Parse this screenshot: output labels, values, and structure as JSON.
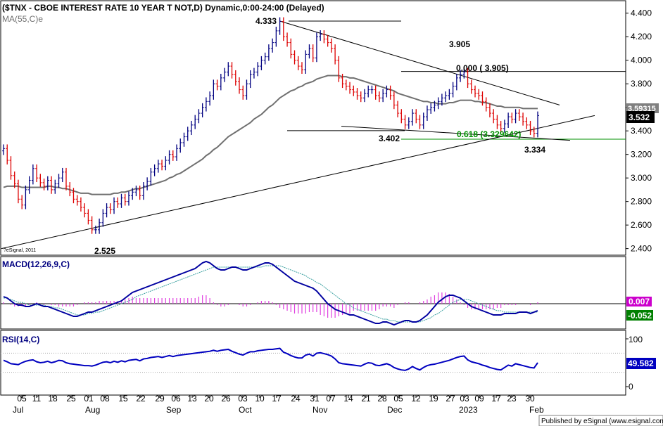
{
  "chart_data": [
    {
      "type": "candlestick",
      "title": "($TNX - CBOE INTEREST RATE 10 YEAR T NOT,D) Dynamic,0:00-24:00 (Delayed)",
      "indicator_label": "MA(55,C)e",
      "ylim": [
        2.35,
        4.5
      ],
      "y_ticks": [
        "4.400",
        "4.200",
        "4.000",
        "3.800",
        "3.600",
        "3.400",
        "3.200",
        "3.000",
        "2.800",
        "2.600",
        "2.400"
      ],
      "last_price": "3.532",
      "ma_value": "3.59315",
      "copyright": "?eSignal, 2011",
      "annotations": [
        "4.333",
        "3.905",
        "0.000 ( 3.905)",
        "3.402",
        "0.618 (3.329642)",
        "3.334",
        "2.525"
      ],
      "series": [
        {
          "name": "close",
          "values": [
            3.25,
            3.15,
            3.02,
            2.95,
            2.82,
            2.77,
            2.9,
            2.98,
            3.08,
            3.0,
            2.96,
            2.93,
            2.98,
            2.9,
            2.95,
            3.0,
            3.05,
            2.93,
            2.88,
            2.82,
            2.8,
            2.75,
            2.7,
            2.64,
            2.56,
            2.56,
            2.62,
            2.7,
            2.75,
            2.73,
            2.8,
            2.78,
            2.83,
            2.8,
            2.85,
            2.88,
            2.9,
            2.85,
            2.93,
            2.97,
            3.05,
            3.08,
            3.12,
            3.1,
            3.15,
            3.2,
            3.18,
            3.25,
            3.3,
            3.35,
            3.4,
            3.45,
            3.5,
            3.55,
            3.6,
            3.65,
            3.7,
            3.8,
            3.78,
            3.85,
            3.9,
            3.95,
            3.88,
            3.82,
            3.75,
            3.7,
            3.8,
            3.88,
            3.9,
            3.95,
            4.0,
            4.03,
            4.1,
            4.15,
            4.25,
            4.33,
            4.2,
            4.15,
            4.05,
            4.0,
            3.95,
            3.92,
            4.05,
            4.1,
            4.02,
            4.2,
            4.22,
            4.18,
            4.15,
            4.1,
            4.0,
            3.85,
            3.8,
            3.78,
            3.75,
            3.73,
            3.7,
            3.68,
            3.72,
            3.75,
            3.75,
            3.7,
            3.68,
            3.72,
            3.75,
            3.7,
            3.62,
            3.55,
            3.5,
            3.45,
            3.48,
            3.55,
            3.5,
            3.45,
            3.52,
            3.58,
            3.6,
            3.62,
            3.65,
            3.68,
            3.7,
            3.72,
            3.78,
            3.85,
            3.88,
            3.9,
            3.8,
            3.75,
            3.72,
            3.7,
            3.65,
            3.6,
            3.55,
            3.5,
            3.45,
            3.42,
            3.46,
            3.52,
            3.5,
            3.55,
            3.52,
            3.48,
            3.45,
            3.4,
            3.38,
            3.53
          ]
        },
        {
          "name": "MA(55,C)e",
          "values": [
            2.92,
            2.93,
            2.93,
            2.93,
            2.93,
            2.92,
            2.92,
            2.92,
            2.92,
            2.92,
            2.92,
            2.92,
            2.93,
            2.93,
            2.92,
            2.92,
            2.91,
            2.91,
            2.9,
            2.89,
            2.88,
            2.87,
            2.87,
            2.87,
            2.86,
            2.86,
            2.86,
            2.86,
            2.86,
            2.86,
            2.87,
            2.87,
            2.88,
            2.88,
            2.89,
            2.9,
            2.91,
            2.91,
            2.92,
            2.93,
            2.94,
            2.95,
            2.96,
            2.97,
            2.98,
            3.0,
            3.01,
            3.03,
            3.04,
            3.06,
            3.08,
            3.1,
            3.12,
            3.14,
            3.16,
            3.19,
            3.21,
            3.24,
            3.26,
            3.29,
            3.32,
            3.35,
            3.37,
            3.39,
            3.41,
            3.43,
            3.45,
            3.47,
            3.5,
            3.52,
            3.54,
            3.57,
            3.6,
            3.62,
            3.65,
            3.68,
            3.7,
            3.72,
            3.74,
            3.75,
            3.77,
            3.78,
            3.8,
            3.81,
            3.82,
            3.84,
            3.85,
            3.86,
            3.87,
            3.87,
            3.87,
            3.87,
            3.86,
            3.86,
            3.85,
            3.85,
            3.84,
            3.83,
            3.82,
            3.81,
            3.8,
            3.79,
            3.78,
            3.77,
            3.76,
            3.75,
            3.74,
            3.72,
            3.71,
            3.7,
            3.69,
            3.68,
            3.67,
            3.66,
            3.65,
            3.65,
            3.64,
            3.64,
            3.63,
            3.63,
            3.63,
            3.64,
            3.64,
            3.65,
            3.66,
            3.66,
            3.66,
            3.66,
            3.65,
            3.65,
            3.64,
            3.64,
            3.63,
            3.62,
            3.61,
            3.61,
            3.6,
            3.6,
            3.6,
            3.6,
            3.6,
            3.59,
            3.59,
            3.59,
            3.59,
            3.59
          ]
        }
      ]
    },
    {
      "type": "line",
      "title": "MACD(12,26,9,C)",
      "y_value_labels": [
        "0.007",
        "-0.052"
      ],
      "series": [
        {
          "name": "MACD",
          "values": [
            0.05,
            0.04,
            0.02,
            0.0,
            -0.01,
            -0.01,
            -0.02,
            -0.02,
            -0.01,
            0.0,
            -0.01,
            -0.02,
            -0.02,
            -0.03,
            -0.04,
            -0.05,
            -0.06,
            -0.07,
            -0.08,
            -0.09,
            -0.09,
            -0.08,
            -0.07,
            -0.06,
            -0.06,
            -0.05,
            -0.04,
            -0.03,
            -0.02,
            -0.01,
            0.0,
            0.01,
            0.02,
            0.04,
            0.06,
            0.08,
            0.09,
            0.1,
            0.11,
            0.12,
            0.13,
            0.14,
            0.15,
            0.16,
            0.17,
            0.18,
            0.19,
            0.2,
            0.21,
            0.22,
            0.23,
            0.24,
            0.25,
            0.27,
            0.29,
            0.3,
            0.29,
            0.27,
            0.25,
            0.24,
            0.24,
            0.25,
            0.26,
            0.26,
            0.25,
            0.24,
            0.24,
            0.25,
            0.26,
            0.27,
            0.28,
            0.29,
            0.29,
            0.28,
            0.26,
            0.24,
            0.22,
            0.2,
            0.18,
            0.16,
            0.15,
            0.14,
            0.13,
            0.12,
            0.11,
            0.09,
            0.06,
            0.03,
            0.0,
            -0.02,
            -0.04,
            -0.05,
            -0.06,
            -0.07,
            -0.08,
            -0.08,
            -0.09,
            -0.1,
            -0.11,
            -0.12,
            -0.13,
            -0.14,
            -0.14,
            -0.13,
            -0.13,
            -0.14,
            -0.15,
            -0.14,
            -0.13,
            -0.12,
            -0.12,
            -0.13,
            -0.13,
            -0.12,
            -0.1,
            -0.08,
            -0.05,
            -0.02,
            0.01,
            0.03,
            0.05,
            0.06,
            0.06,
            0.05,
            0.04,
            0.02,
            0.0,
            -0.02,
            -0.03,
            -0.04,
            -0.05,
            -0.06,
            -0.07,
            -0.08,
            -0.08,
            -0.08,
            -0.07,
            -0.07,
            -0.07,
            -0.07,
            -0.06,
            -0.06,
            -0.06,
            -0.07,
            -0.06,
            -0.05
          ]
        },
        {
          "name": "Signal",
          "values": [
            0.04,
            0.04,
            0.03,
            0.02,
            0.01,
            0.01,
            0.0,
            -0.01,
            -0.01,
            -0.01,
            -0.01,
            -0.01,
            -0.02,
            -0.02,
            -0.03,
            -0.03,
            -0.04,
            -0.05,
            -0.06,
            -0.07,
            -0.08,
            -0.08,
            -0.08,
            -0.07,
            -0.07,
            -0.06,
            -0.06,
            -0.05,
            -0.04,
            -0.03,
            -0.02,
            -0.01,
            0.0,
            0.01,
            0.02,
            0.03,
            0.05,
            0.06,
            0.07,
            0.08,
            0.09,
            0.1,
            0.11,
            0.12,
            0.13,
            0.14,
            0.15,
            0.16,
            0.17,
            0.18,
            0.19,
            0.2,
            0.21,
            0.22,
            0.23,
            0.24,
            0.25,
            0.26,
            0.26,
            0.26,
            0.26,
            0.26,
            0.26,
            0.26,
            0.26,
            0.26,
            0.26,
            0.26,
            0.26,
            0.26,
            0.26,
            0.27,
            0.27,
            0.27,
            0.27,
            0.27,
            0.26,
            0.25,
            0.24,
            0.23,
            0.22,
            0.21,
            0.2,
            0.18,
            0.17,
            0.15,
            0.14,
            0.12,
            0.1,
            0.08,
            0.06,
            0.04,
            0.02,
            0.0,
            -0.01,
            -0.03,
            -0.04,
            -0.05,
            -0.06,
            -0.07,
            -0.08,
            -0.09,
            -0.1,
            -0.11,
            -0.11,
            -0.12,
            -0.12,
            -0.13,
            -0.13,
            -0.13,
            -0.13,
            -0.13,
            -0.13,
            -0.13,
            -0.12,
            -0.11,
            -0.1,
            -0.08,
            -0.07,
            -0.05,
            -0.03,
            -0.01,
            0.01,
            0.02,
            0.03,
            0.03,
            0.03,
            0.02,
            0.01,
            0.0,
            -0.01,
            -0.02,
            -0.03,
            -0.04,
            -0.05,
            -0.05,
            -0.06,
            -0.06,
            -0.06,
            -0.06,
            -0.06,
            -0.06,
            -0.06,
            -0.06,
            -0.06,
            -0.06
          ]
        }
      ]
    },
    {
      "type": "line",
      "title": "RSI(14,C)",
      "ylim": [
        0,
        100
      ],
      "y_ticks": [
        "100",
        "50",
        "0"
      ],
      "last_value": "49.582",
      "series": [
        {
          "name": "RSI",
          "values": [
            55,
            52,
            48,
            47,
            46,
            50,
            53,
            55,
            56,
            52,
            50,
            51,
            53,
            50,
            52,
            55,
            54,
            50,
            48,
            47,
            46,
            45,
            44,
            44,
            43,
            45,
            48,
            51,
            52,
            50,
            53,
            51,
            54,
            52,
            55,
            56,
            57,
            54,
            58,
            59,
            61,
            62,
            63,
            61,
            63,
            65,
            63,
            65,
            66,
            67,
            68,
            69,
            70,
            71,
            72,
            73,
            74,
            76,
            74,
            76,
            77,
            78,
            74,
            71,
            68,
            66,
            70,
            73,
            73,
            75,
            76,
            77,
            78,
            78,
            79,
            80,
            72,
            69,
            65,
            62,
            60,
            60,
            66,
            68,
            64,
            70,
            71,
            69,
            67,
            64,
            58,
            50,
            48,
            47,
            46,
            45,
            44,
            43,
            47,
            50,
            49,
            45,
            44,
            46,
            48,
            45,
            40,
            37,
            35,
            34,
            37,
            42,
            38,
            35,
            40,
            44,
            46,
            47,
            49,
            51,
            53,
            55,
            58,
            61,
            63,
            64,
            56,
            52,
            50,
            48,
            45,
            43,
            40,
            38,
            36,
            35,
            40,
            45,
            43,
            48,
            46,
            44,
            42,
            40,
            39,
            50
          ]
        }
      ]
    }
  ],
  "x_axis": {
    "day_labels": [
      "05",
      "11",
      "18",
      "25",
      "01",
      "08",
      "15",
      "22",
      "29",
      "06",
      "13",
      "20",
      "26",
      "03",
      "10",
      "17",
      "24",
      "31",
      "07",
      "14",
      "21",
      "28",
      "05",
      "12",
      "19",
      "27",
      "03",
      "09",
      "17",
      "23",
      "30"
    ],
    "month_labels": [
      "Jul",
      "Aug",
      "Sep",
      "Oct",
      "Nov",
      "Dec",
      "2023",
      "Feb"
    ]
  },
  "footer": "Published by eSignal (www.esignal.com)",
  "colors": {
    "up_bar": "#000080",
    "down_bar": "#dd0000",
    "ma_line": "#707070",
    "macd_line": "#0000a0",
    "signal_line": "#3aa0a0",
    "histogram": "#e040e0",
    "rsi_line": "#0000c0",
    "fib_line": "#009000",
    "fib_text": "#009000",
    "last_price_box": "#000000",
    "ma_box": "#808080",
    "macd_box": "#cc00cc",
    "signal_box": "#008000",
    "rsi_box": "#0000c0"
  }
}
